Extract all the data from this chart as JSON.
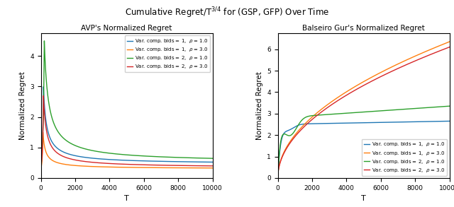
{
  "title": "Cumulative Regret/T$^{3/4}$ for (GSP, GFP) Over Time",
  "left_title": "AVP's Normalized Regret",
  "right_title": "Balseiro Gur's Normalized Regret",
  "xlabel": "T",
  "ylabel": "Normalized Regret",
  "colors": {
    "blue": "#1f77b4",
    "orange": "#ff7f0e",
    "green": "#2ca02c",
    "red": "#d62728"
  },
  "legend_labels": [
    "Var. comp. bids = 1,  $\\rho$ = 1.0",
    "Var. comp. bids = 1,  $\\rho$ = 3.0",
    "Var. comp. bids = 2,  $\\rho$ = 1.0",
    "Var. comp. bids = 2,  $\\rho$ = 3.0"
  ],
  "T_max": 10000,
  "left_ylim": [
    0,
    4.75
  ],
  "right_ylim": [
    0,
    6.75
  ],
  "left_yticks": [
    0,
    1,
    2,
    3,
    4
  ],
  "right_yticks": [
    0,
    1,
    2,
    3,
    4,
    5,
    6
  ],
  "xticks": [
    0,
    2000,
    4000,
    6000,
    8000,
    10000
  ],
  "right_xticks": [
    0,
    2000,
    4000,
    6000,
    8000,
    10000
  ]
}
